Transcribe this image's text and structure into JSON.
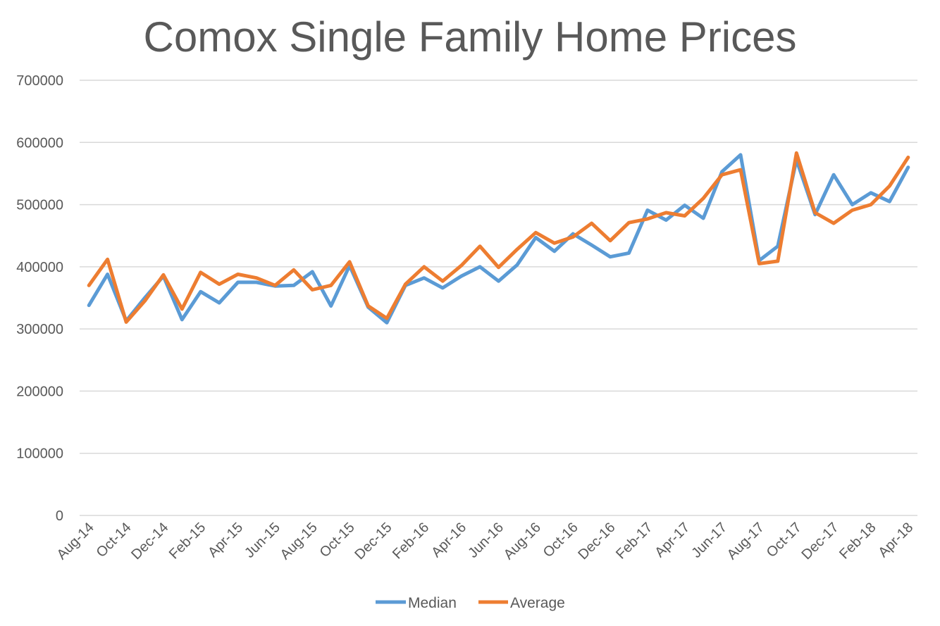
{
  "chart_data": {
    "type": "line",
    "title": "Comox Single Family Home Prices",
    "xlabel": "",
    "ylabel": "",
    "ylim": [
      0,
      700000
    ],
    "yticks": [
      "0",
      "100000",
      "200000",
      "300000",
      "400000",
      "500000",
      "600000",
      "700000"
    ],
    "grid": true,
    "legend_position": "bottom",
    "x": [
      "Aug-14",
      "Sep-14",
      "Oct-14",
      "Nov-14",
      "Dec-14",
      "Jan-15",
      "Feb-15",
      "Mar-15",
      "Apr-15",
      "May-15",
      "Jun-15",
      "Jul-15",
      "Aug-15",
      "Sep-15",
      "Oct-15",
      "Nov-15",
      "Dec-15",
      "Jan-16",
      "Feb-16",
      "Mar-16",
      "Apr-16",
      "May-16",
      "Jun-16",
      "Jul-16",
      "Aug-16",
      "Sep-16",
      "Oct-16",
      "Nov-16",
      "Dec-16",
      "Jan-17",
      "Feb-17",
      "Mar-17",
      "Apr-17",
      "May-17",
      "Jun-17",
      "Jul-17",
      "Aug-17",
      "Sep-17",
      "Oct-17",
      "Nov-17",
      "Dec-17",
      "Jan-18",
      "Feb-18",
      "Mar-18",
      "Apr-18"
    ],
    "xtick_labels": [
      "Aug-14",
      "Oct-14",
      "Dec-14",
      "Feb-15",
      "Apr-15",
      "Jun-15",
      "Aug-15",
      "Oct-15",
      "Dec-15",
      "Feb-16",
      "Apr-16",
      "Jun-16",
      "Aug-16",
      "Oct-16",
      "Dec-16",
      "Feb-17",
      "Apr-17",
      "Jun-17",
      "Aug-17",
      "Oct-17",
      "Dec-17",
      "Feb-18",
      "Apr-18"
    ],
    "series": [
      {
        "name": "Median",
        "color": "#5B9BD5",
        "values": [
          338000,
          388000,
          313000,
          350000,
          385000,
          315000,
          360000,
          342000,
          375000,
          375000,
          369000,
          370000,
          392000,
          337000,
          402000,
          335000,
          310000,
          370000,
          382000,
          366000,
          385000,
          400000,
          377000,
          403000,
          447000,
          425000,
          453000,
          435000,
          416000,
          422000,
          491000,
          475000,
          499000,
          478000,
          553000,
          580000,
          410000,
          433000,
          572000,
          484000,
          548000,
          500000,
          519000,
          505000,
          560000
        ]
      },
      {
        "name": "Average",
        "color": "#ED7D31",
        "values": [
          370000,
          412000,
          311000,
          345000,
          387000,
          332000,
          391000,
          372000,
          388000,
          382000,
          370000,
          395000,
          363000,
          370000,
          408000,
          337000,
          317000,
          372000,
          400000,
          377000,
          402000,
          433000,
          399000,
          428000,
          455000,
          438000,
          448000,
          470000,
          442000,
          471000,
          477000,
          487000,
          482000,
          510000,
          548000,
          556000,
          405000,
          409000,
          583000,
          487000,
          470000,
          491000,
          500000,
          530000,
          576000
        ]
      }
    ]
  }
}
